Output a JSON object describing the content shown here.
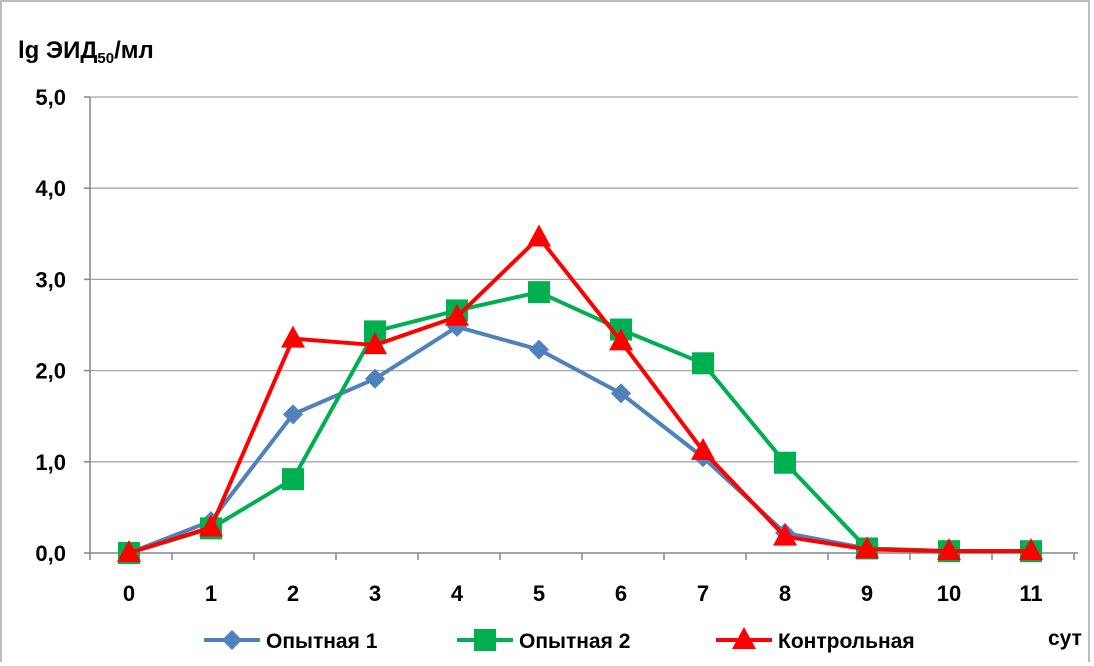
{
  "chart_data": {
    "type": "line",
    "ylabel_main": "lg ЭИД",
    "ylabel_sub": "50",
    "ylabel_tail": "/мл",
    "xlabel": "сут",
    "ylim": [
      0,
      5
    ],
    "yticks": [
      "0,0",
      "1,0",
      "2,0",
      "3,0",
      "4,0",
      "5,0"
    ],
    "ytick_values": [
      0,
      1,
      2,
      3,
      4,
      5
    ],
    "categories": [
      "0",
      "1",
      "2",
      "3",
      "4",
      "5",
      "6",
      "7",
      "8",
      "9",
      "10",
      "11"
    ],
    "grid": true,
    "legend_position": "bottom",
    "series": [
      {
        "name": "Опытная 1",
        "color": "#4f81bd",
        "marker": "diamond",
        "values": [
          0.0,
          0.35,
          1.52,
          1.91,
          2.48,
          2.23,
          1.75,
          1.05,
          0.22,
          0.05,
          0.02,
          0.02
        ]
      },
      {
        "name": "Опытная 2",
        "color": "#00b050",
        "marker": "square",
        "values": [
          0.0,
          0.27,
          0.81,
          2.43,
          2.66,
          2.86,
          2.45,
          2.08,
          0.99,
          0.05,
          0.02,
          0.02
        ]
      },
      {
        "name": "Контрольная",
        "color": "#ff0000",
        "marker": "triangle",
        "values": [
          0.0,
          0.28,
          2.35,
          2.28,
          2.59,
          3.46,
          2.32,
          1.12,
          0.18,
          0.04,
          0.02,
          0.02
        ]
      }
    ]
  }
}
